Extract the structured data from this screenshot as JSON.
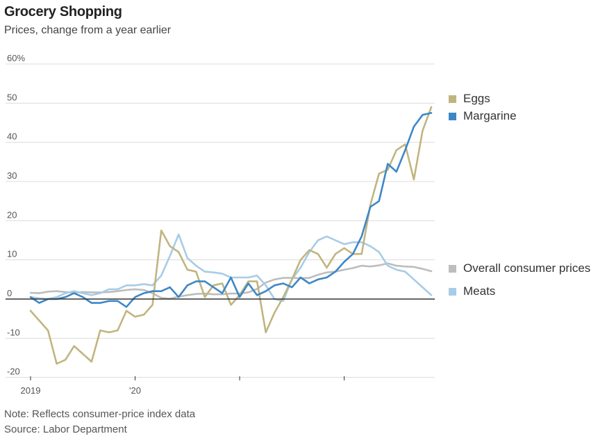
{
  "chart_data": {
    "type": "line",
    "title": "Grocery Shopping",
    "subtitle": "Prices, change from a year earlier",
    "notes": {
      "note": "Note: Reflects consumer-price index data",
      "source": "Source: Labor Department"
    },
    "xlabel": "",
    "ylabel": "",
    "ylim": [
      -20,
      60
    ],
    "yticks": [
      {
        "value": -20,
        "label": "-20"
      },
      {
        "value": -10,
        "label": "-10"
      },
      {
        "value": 0,
        "label": "0"
      },
      {
        "value": 10,
        "label": "10"
      },
      {
        "value": 20,
        "label": "20"
      },
      {
        "value": 30,
        "label": "30"
      },
      {
        "value": 40,
        "label": "40"
      },
      {
        "value": 50,
        "label": "50"
      },
      {
        "value": 60,
        "label": "60%"
      }
    ],
    "xticks": [
      {
        "index": 0,
        "label": "2019"
      },
      {
        "index": 12,
        "label": "'20"
      },
      {
        "index": 24,
        "label": ""
      },
      {
        "index": 36,
        "label": ""
      }
    ],
    "months": 47,
    "series": [
      {
        "name": "Eggs",
        "color": "#c0b57f",
        "values": [
          -3,
          -5.5,
          -8,
          -16.5,
          -15.5,
          -12,
          -14,
          -16,
          -8,
          -8.5,
          -8,
          -3,
          -4.5,
          -4,
          -1.5,
          17.5,
          13.5,
          12,
          7.5,
          7,
          0.5,
          3.5,
          4,
          -1.5,
          1,
          4.5,
          4.5,
          -8.5,
          -3.5,
          0.5,
          5,
          10,
          12.5,
          11.5,
          8,
          11.5,
          13,
          11.5,
          11.5,
          24,
          32,
          33,
          38,
          39.5,
          30.5,
          43,
          49
        ]
      },
      {
        "name": "Margarine",
        "color": "#3d87c7",
        "values": [
          0.5,
          -1,
          0,
          0,
          0.5,
          1.5,
          0.5,
          -1,
          -1,
          -0.5,
          -0.5,
          -2,
          0.5,
          1.5,
          2,
          2,
          3,
          0.5,
          3.5,
          4.5,
          4.5,
          3,
          1.5,
          5.5,
          0.5,
          4,
          1,
          2,
          3.5,
          4,
          3,
          5.5,
          4,
          5,
          5.5,
          7,
          9.5,
          11.5,
          16,
          23.5,
          25,
          34.5,
          32.5,
          38,
          44,
          47,
          47.5
        ]
      },
      {
        "name": "Overall consumer prices",
        "color": "#bdbdbd",
        "values": [
          1.6,
          1.5,
          1.9,
          2,
          1.8,
          1.6,
          1.8,
          1.7,
          1.7,
          1.8,
          2,
          2.3,
          2.5,
          2.3,
          1.5,
          0.3,
          0.1,
          0.6,
          1,
          1.3,
          1.4,
          1.2,
          1.2,
          1.4,
          1.4,
          1.7,
          2.6,
          4.2,
          5,
          5.4,
          5.4,
          5.3,
          5.4,
          6.2,
          6.8,
          7,
          7.5,
          7.9,
          8.5,
          8.3,
          8.6,
          9.1,
          8.5,
          8.3,
          8.2,
          7.7,
          7.1
        ]
      },
      {
        "name": "Meats",
        "color": "#a7cce6",
        "values": [
          0.5,
          0.2,
          0,
          0.5,
          1.5,
          2,
          1.5,
          1,
          1.5,
          2.5,
          2.5,
          3.5,
          3.5,
          3.8,
          3.5,
          6,
          11,
          16.5,
          10.5,
          8.5,
          7,
          6.8,
          6.5,
          5.5,
          5.5,
          5.5,
          6,
          3.5,
          0,
          -0.5,
          5,
          8,
          12,
          15,
          16,
          15,
          14,
          14.5,
          14.5,
          13.5,
          12,
          8.5,
          7.5,
          7,
          5,
          3,
          1
        ]
      }
    ],
    "legend": [
      {
        "label": "Eggs",
        "color": "#c0b57f"
      },
      {
        "label": "Margarine",
        "color": "#3d87c7"
      },
      {
        "label": "Overall consumer prices",
        "color": "#bdbdbd"
      },
      {
        "label": "Meats",
        "color": "#a7cce6"
      }
    ]
  }
}
